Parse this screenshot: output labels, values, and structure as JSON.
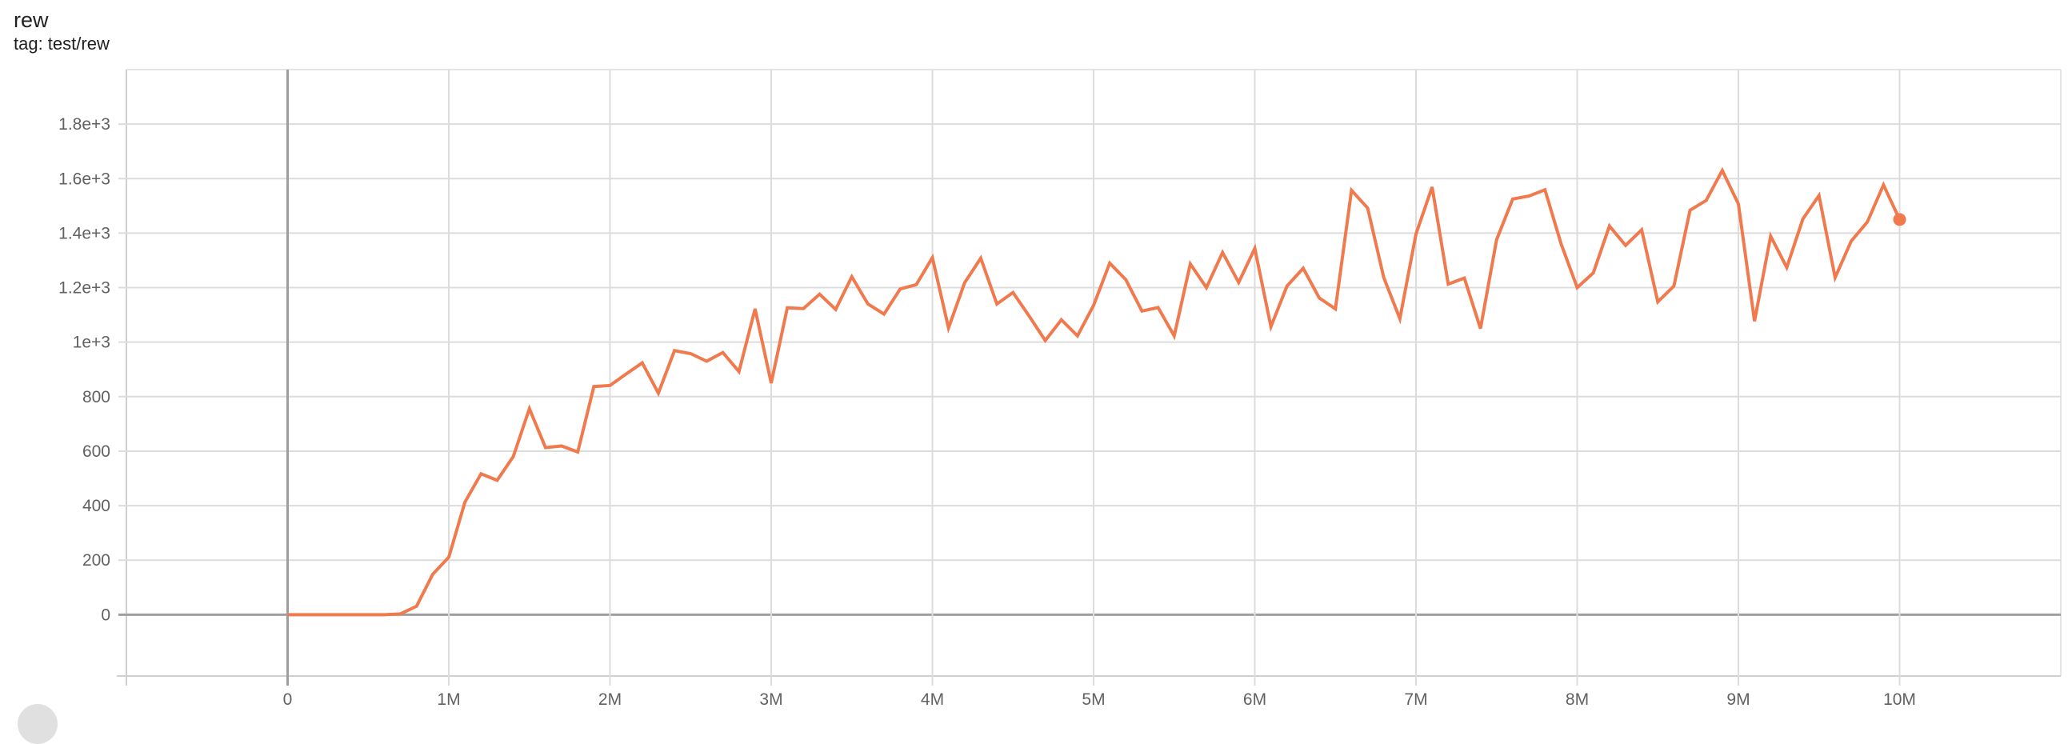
{
  "card": {
    "title": "rew",
    "subtitle": "tag: test/rew"
  },
  "colors": {
    "series": "#f07a4e",
    "grid": "#dcdcdc",
    "zero_axis": "#9e9e9e"
  },
  "chart_data": {
    "type": "line",
    "title": "rew",
    "xlabel": "",
    "ylabel": "",
    "xlim": [
      -1000000,
      11000000
    ],
    "ylim": [
      -225,
      2000
    ],
    "grid": true,
    "x_ticks": [
      0,
      1000000,
      2000000,
      3000000,
      4000000,
      5000000,
      6000000,
      7000000,
      8000000,
      9000000,
      10000000
    ],
    "x_tick_labels": [
      "0",
      "1M",
      "2M",
      "3M",
      "4M",
      "5M",
      "6M",
      "7M",
      "8M",
      "9M",
      "10M"
    ],
    "y_ticks": [
      0,
      200,
      400,
      600,
      800,
      1000,
      1200,
      1400,
      1600,
      1800
    ],
    "y_tick_labels": [
      "0",
      "200",
      "400",
      "600",
      "800",
      "1e+3",
      "1.2e+3",
      "1.4e+3",
      "1.6e+3",
      "1.8e+3"
    ],
    "series": [
      {
        "x_step": 100000,
        "x_start": 0,
        "values": [
          0,
          0,
          0,
          0,
          0,
          0,
          0,
          3,
          31,
          148,
          211,
          413,
          517,
          493,
          580,
          756,
          613,
          619,
          597,
          837,
          841,
          883,
          924,
          813,
          969,
          958,
          930,
          962,
          892,
          1122,
          850,
          1126,
          1123,
          1176,
          1120,
          1240,
          1140,
          1103,
          1195,
          1211,
          1310,
          1052,
          1218,
          1308,
          1140,
          1182,
          1096,
          1006,
          1082,
          1023,
          1135,
          1290,
          1229,
          1114,
          1127,
          1023,
          1287,
          1200,
          1329,
          1219,
          1344,
          1057,
          1206,
          1271,
          1162,
          1122,
          1557,
          1492,
          1237,
          1086,
          1397,
          1569,
          1213,
          1235,
          1050,
          1376,
          1525,
          1536,
          1559,
          1361,
          1200,
          1254,
          1426,
          1355,
          1412,
          1148,
          1206,
          1484,
          1520,
          1630,
          1507,
          1077,
          1389,
          1274,
          1452,
          1538,
          1237,
          1371,
          1441,
          1577,
          1450
        ]
      }
    ]
  }
}
